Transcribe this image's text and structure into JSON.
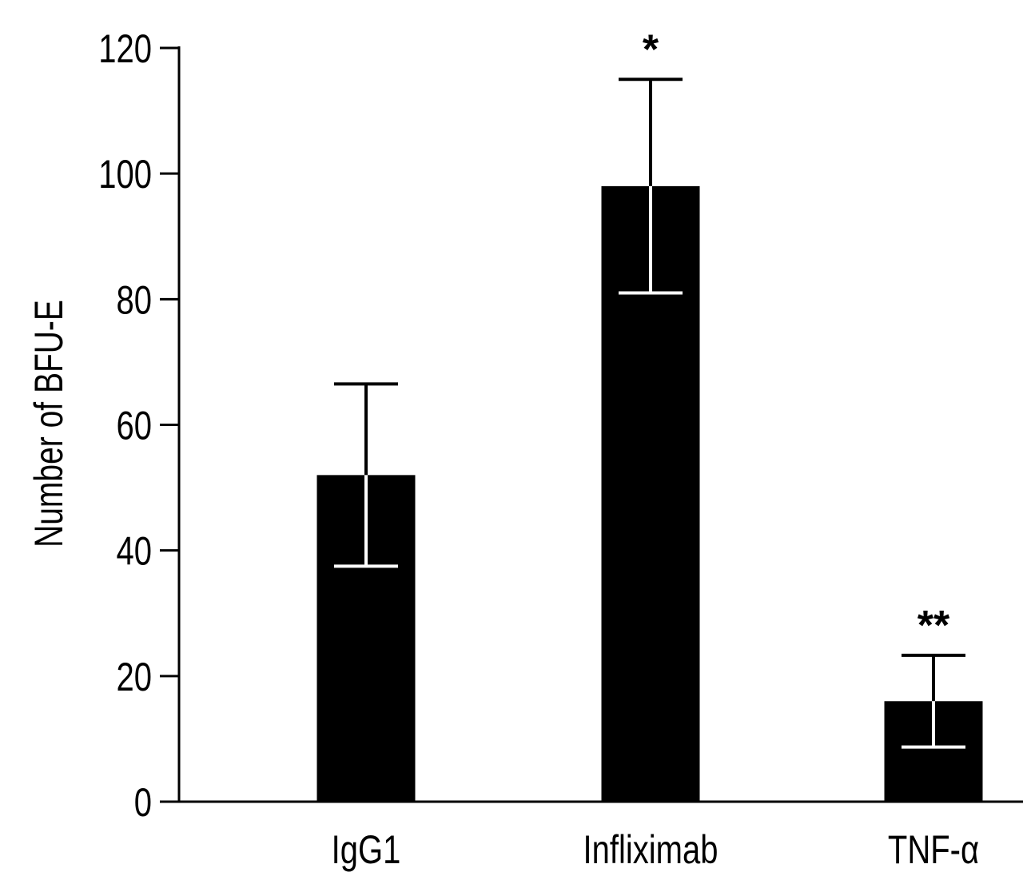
{
  "chart_data": {
    "type": "bar",
    "title": "",
    "xlabel": "",
    "ylabel": "Number of BFU-E",
    "ylim": [
      0,
      120
    ],
    "yticks": [
      0,
      20,
      40,
      60,
      80,
      100,
      120
    ],
    "ytick_labels": [
      "0",
      "20",
      "40",
      "60",
      "80",
      "100",
      "120"
    ],
    "categories": [
      "IgG1",
      "Infliximab",
      "TNF-α"
    ],
    "values": [
      52,
      98,
      16
    ],
    "errors": [
      14.5,
      17,
      7.3
    ],
    "annotations": [
      "",
      "*",
      "**"
    ],
    "grid": false,
    "bar_color": "#000000"
  }
}
